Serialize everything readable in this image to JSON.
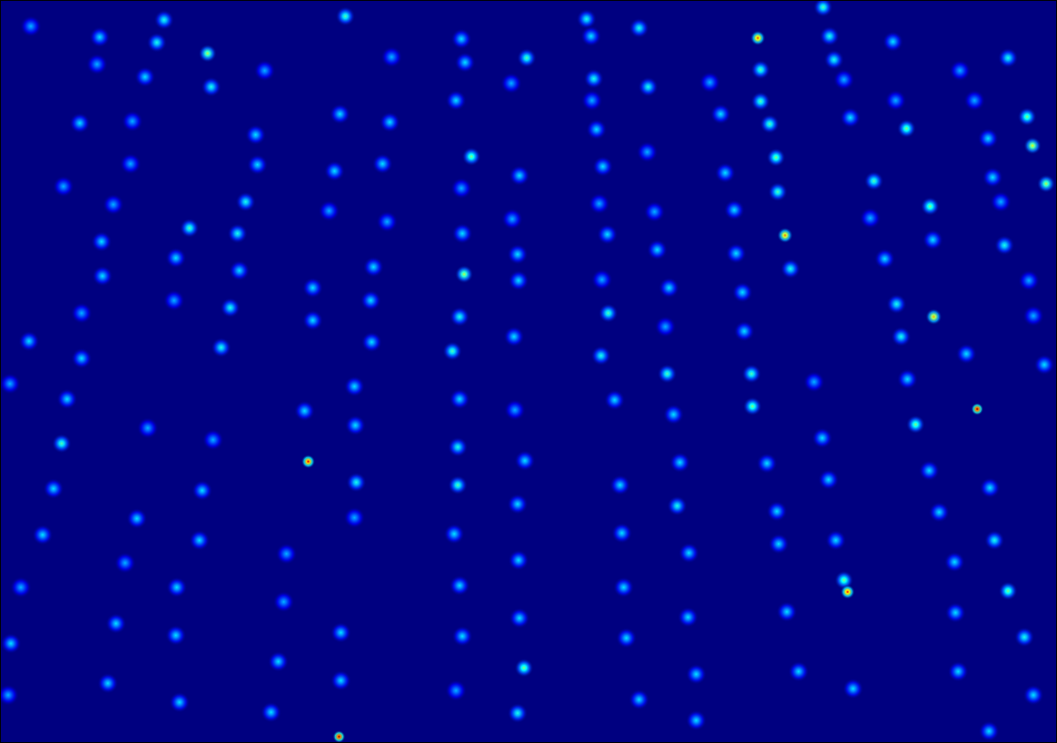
{
  "chart_data": {
    "type": "scatter",
    "xlim": [
      0,
      1164
    ],
    "ylim": [
      0,
      819
    ],
    "clim": [
      0,
      1
    ],
    "tick_labels": false,
    "grid": false,
    "x": [
      33,
      109,
      180,
      172,
      106,
      228,
      159,
      232,
      291,
      380,
      431,
      87,
      145,
      281,
      143,
      283,
      374,
      429,
      69,
      124,
      270,
      208,
      261,
      368,
      421,
      362,
      426,
      111,
      193,
      263,
      112,
      191,
      253,
      344,
      344,
      411,
      408,
      89,
      31,
      89,
      243,
      409,
      10,
      73,
      162,
      234,
      335,
      390,
      391,
      67,
      339,
      58,
      222,
      392,
      150,
      390,
      46,
      219,
      137,
      315,
      22,
      194,
      312,
      127,
      11,
      193,
      375,
      306,
      118,
      375,
      8,
      197,
      298,
      373,
      508,
      512,
      580,
      563,
      502,
      519,
      508,
      572,
      564,
      509,
      570,
      511,
      571,
      506,
      566,
      498,
      506,
      567,
      504,
      578,
      504,
      570,
      500,
      571,
      506,
      572,
      509,
      577,
      502,
      570,
      646,
      651,
      704,
      654,
      714,
      652,
      657,
      664,
      713,
      660,
      721,
      669,
      724,
      663,
      737,
      670,
      733,
      662,
      735,
      677,
      742,
      683,
      749,
      746,
      685,
      759,
      687,
      758,
      690,
      767,
      704,
      767,
      835,
      838,
      838,
      848,
      782,
      794,
      855,
      799,
      857,
      809,
      865,
      811,
      871,
      818,
      820,
      828,
      829,
      897,
      906,
      845,
      913,
      856,
      858,
      921,
      930,
      934,
      867,
      880,
      940,
      907,
      914,
      919,
      930,
      984,
      937,
      987,
      999,
      1058,
      1111,
      1074,
      1132,
      1089,
      1138,
      963,
      1094,
      1153,
      1103,
      959,
      1025,
      1028,
      975,
      1107,
      1134,
      988,
      1029,
      1139,
      993,
      1065,
      1151,
      1000,
      1077,
      1009,
      1024,
      1091,
      1035,
      1096,
      1052,
      1111,
      1053,
      1129,
      1056,
      1139,
      1090
    ],
    "y": [
      28,
      40,
      21,
      46,
      70,
      58,
      84,
      95,
      77,
      17,
      62,
      135,
      133,
      148,
      180,
      181,
      125,
      134,
      205,
      225,
      222,
      251,
      257,
      188,
      180,
      232,
      244,
      266,
      284,
      298,
      304,
      331,
      339,
      317,
      353,
      294,
      331,
      345,
      376,
      395,
      383,
      377,
      423,
      440,
      472,
      485,
      453,
      426,
      469,
      489,
      509,
      539,
      541,
      532,
      572,
      571,
      590,
      596,
      621,
      611,
      648,
      648,
      664,
      688,
      710,
      701,
      698,
      730,
      754,
      751,
      767,
      775,
      786,
      813,
      42,
      68,
      63,
      91,
      110,
      172,
      207,
      193,
      241,
      257,
      280,
      302,
      309,
      349,
      371,
      387,
      440,
      452,
      493,
      508,
      535,
      556,
      589,
      618,
      646,
      682,
      702,
      737,
      762,
      787,
      20,
      39,
      30,
      86,
      95,
      110,
      142,
      183,
      167,
      224,
      233,
      258,
      275,
      308,
      317,
      345,
      360,
      392,
      412,
      441,
      457,
      535,
      510,
      558,
      588,
      610,
      648,
      681,
      704,
      744,
      772,
      795,
      41,
      76,
      111,
      136,
      90,
      125,
      173,
      190,
      211,
      231,
      259,
      279,
      296,
      322,
      365,
      412,
      448,
      421,
      483,
      511,
      529,
      564,
      600,
      596,
      640,
      653,
      675,
      741,
      760,
      7,
      39,
      65,
      87,
      45,
      129,
      110,
      141,
      77,
      63,
      110,
      128,
      152,
      160,
      199,
      195,
      202,
      222,
      240,
      227,
      264,
      285,
      270,
      309,
      335,
      349,
      348,
      371,
      390,
      402,
      418,
      451,
      468,
      519,
      538,
      565,
      596,
      620,
      652,
      676,
      703,
      741,
      767,
      807
    ],
    "intensity": [
      0.3,
      0.35,
      0.4,
      0.4,
      0.3,
      0.55,
      0.35,
      0.4,
      0.3,
      0.45,
      0.3,
      0.35,
      0.3,
      0.35,
      0.3,
      0.35,
      0.35,
      0.35,
      0.3,
      0.3,
      0.4,
      0.45,
      0.4,
      0.35,
      0.35,
      0.3,
      0.3,
      0.35,
      0.35,
      0.35,
      0.35,
      0.3,
      0.4,
      0.35,
      0.35,
      0.35,
      0.35,
      0.3,
      0.35,
      0.35,
      0.4,
      0.35,
      0.3,
      0.35,
      0.3,
      0.3,
      0.35,
      0.35,
      0.35,
      0.45,
      0.9,
      0.35,
      0.35,
      0.4,
      0.35,
      0.3,
      0.35,
      0.35,
      0.3,
      0.3,
      0.3,
      0.35,
      0.3,
      0.35,
      0.35,
      0.35,
      0.35,
      0.35,
      0.35,
      0.35,
      0.3,
      0.35,
      0.35,
      1.0,
      0.35,
      0.35,
      0.45,
      0.3,
      0.35,
      0.5,
      0.3,
      0.35,
      0.3,
      0.35,
      0.35,
      0.55,
      0.35,
      0.4,
      0.35,
      0.45,
      0.35,
      0.3,
      0.4,
      0.35,
      0.45,
      0.35,
      0.35,
      0.35,
      0.35,
      0.35,
      0.35,
      0.5,
      0.3,
      0.4,
      0.4,
      0.35,
      0.4,
      0.4,
      0.4,
      0.3,
      0.35,
      0.35,
      0.3,
      0.3,
      0.3,
      0.35,
      0.35,
      0.3,
      0.35,
      0.45,
      0.3,
      0.4,
      0.45,
      0.35,
      0.35,
      0.35,
      0.35,
      0.4,
      0.35,
      0.35,
      0.35,
      0.35,
      0.35,
      0.35,
      0.35,
      0.35,
      0.8,
      0.45,
      0.45,
      0.45,
      0.3,
      0.35,
      0.5,
      0.35,
      0.45,
      0.35,
      0.75,
      0.35,
      0.4,
      0.35,
      0.35,
      0.45,
      0.5,
      0.3,
      0.35,
      0.35,
      0.35,
      0.35,
      0.35,
      0.35,
      0.5,
      0.85,
      0.35,
      0.35,
      0.35,
      0.45,
      0.4,
      0.4,
      0.3,
      0.35,
      0.35,
      0.3,
      0.5,
      0.3,
      0.4,
      0.3,
      0.5,
      0.35,
      0.6,
      0.45,
      0.35,
      0.55,
      0.3,
      0.3,
      0.5,
      0.35,
      0.35,
      0.4,
      0.3,
      0.4,
      0.7,
      0.3,
      0.4,
      0.35,
      0.35,
      0.35,
      1.0,
      0.5,
      0.35,
      0.35,
      0.35,
      0.4,
      0.35,
      0.5,
      0.35,
      0.4,
      0.35,
      0.35,
      0.35
    ]
  }
}
